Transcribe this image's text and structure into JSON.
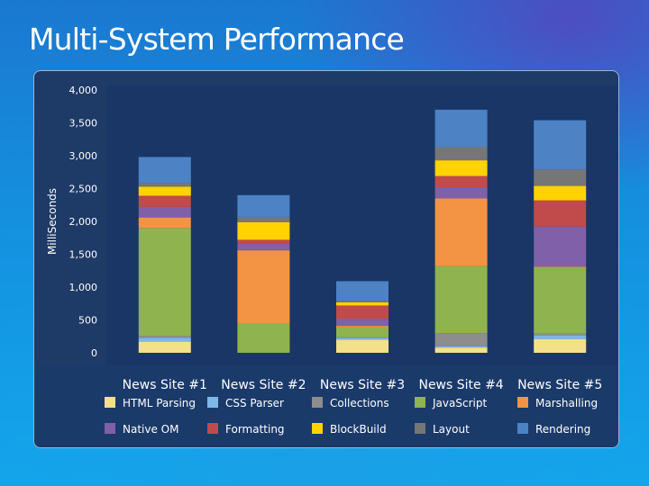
{
  "slide": {
    "title": "Multi-System Performance"
  },
  "chart_data": {
    "type": "bar",
    "stacked": true,
    "title": "",
    "xlabel": "",
    "ylabel": "MilliSeconds",
    "ylim": [
      0,
      4000
    ],
    "yticks": [
      "0",
      "500",
      "1,000",
      "1,500",
      "2,000",
      "2,500",
      "3,000",
      "3,500",
      "4,000"
    ],
    "ytick_values": [
      0,
      500,
      1000,
      1500,
      2000,
      2500,
      3000,
      3500,
      4000
    ],
    "grid": false,
    "legend_position": "bottom",
    "categories": [
      "News Site #1",
      "News Site #2",
      "News Site #3",
      "News Site #4",
      "News Site #5"
    ],
    "series": [
      {
        "name": "HTML Parsing",
        "color": "#f5e08a",
        "values": [
          170,
          0,
          200,
          80,
          210
        ]
      },
      {
        "name": "CSS Parser",
        "color": "#7db9e8",
        "values": [
          60,
          0,
          30,
          20,
          50
        ]
      },
      {
        "name": "Collections",
        "color": "#8d8d8d",
        "values": [
          30,
          0,
          10,
          200,
          30
        ]
      },
      {
        "name": "JavaScript",
        "color": "#8fb34e",
        "values": [
          1640,
          440,
          150,
          1020,
          1000
        ]
      },
      {
        "name": "Marshalling",
        "color": "#f29443",
        "values": [
          160,
          1120,
          20,
          1030,
          20
        ]
      },
      {
        "name": "Native OM",
        "color": "#8060a8",
        "values": [
          160,
          110,
          110,
          170,
          610
        ]
      },
      {
        "name": "Formatting",
        "color": "#c14a4a",
        "values": [
          170,
          50,
          200,
          170,
          400
        ]
      },
      {
        "name": "BlockBuild",
        "color": "#ffd200",
        "values": [
          140,
          270,
          50,
          240,
          220
        ]
      },
      {
        "name": "Layout",
        "color": "#767676",
        "values": [
          50,
          80,
          20,
          200,
          250
        ]
      },
      {
        "name": "Rendering",
        "color": "#4d82c4",
        "values": [
          400,
          330,
          300,
          570,
          750
        ]
      }
    ]
  }
}
